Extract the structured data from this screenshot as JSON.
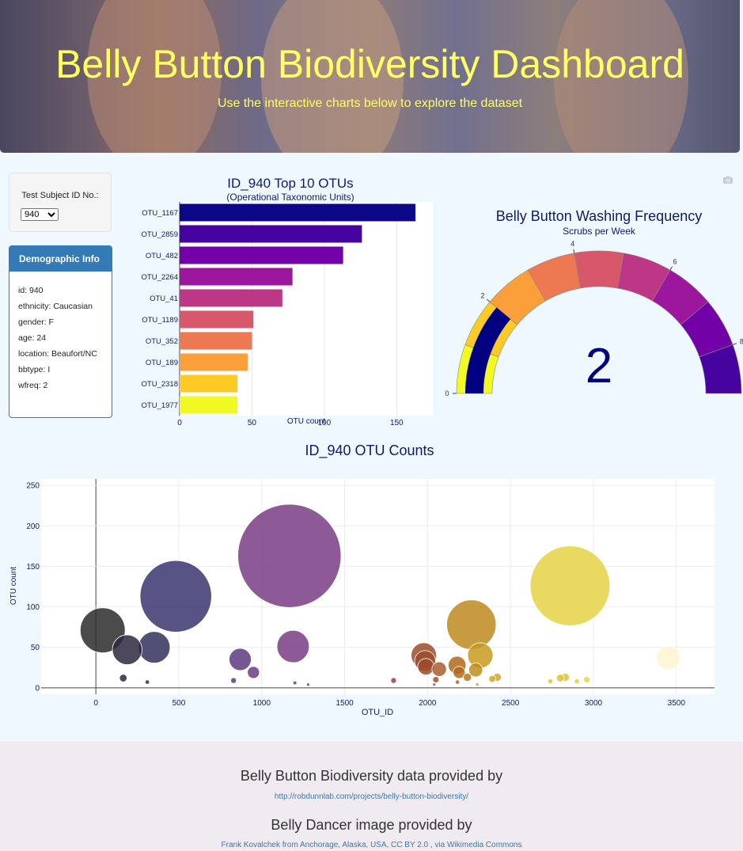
{
  "header": {
    "title": "Belly Button Biodiversity Dashboard",
    "subtitle": "Use the interactive charts below to explore the dataset"
  },
  "selector": {
    "label": "Test Subject ID No.:",
    "value": "940",
    "options": [
      "940"
    ]
  },
  "demographics": {
    "title": "Demographic Info",
    "lines": [
      "id: 940",
      "ethnicity: Caucasian",
      "gender: F",
      "age: 24",
      "location: Beaufort/NC",
      "bbtype: I",
      "wfreq: 2"
    ]
  },
  "icons": {
    "camera": "camera-icon"
  },
  "chart_data": [
    {
      "type": "bar",
      "orientation": "horizontal",
      "title": "ID_940 Top 10 OTUs",
      "subtitle": "(Operational Taxonomic Units)",
      "xlabel": "OTU count",
      "categories": [
        "OTU_1167",
        "OTU_2859",
        "OTU_482",
        "OTU_2264",
        "OTU_41",
        "OTU_1189",
        "OTU_352",
        "OTU_189",
        "OTU_2318",
        "OTU_1977"
      ],
      "values": [
        163,
        126,
        113,
        78,
        71,
        51,
        50,
        47,
        40,
        40
      ],
      "colors": [
        "#0d0887",
        "#46039f",
        "#7201a8",
        "#9c179e",
        "#bd3786",
        "#d8576b",
        "#ed7953",
        "#fb9f3a",
        "#fdca26",
        "#f0f921"
      ],
      "xlim": [
        0,
        175
      ],
      "xticks": [
        0,
        50,
        100,
        150
      ]
    },
    {
      "type": "gauge",
      "title": "Belly Button Washing Frequency",
      "subtitle": "Scrubs per Week",
      "value": 2,
      "range": [
        0,
        9
      ],
      "tick_values": [
        0,
        2,
        4,
        6,
        8
      ],
      "steps": [
        "#f0f921",
        "#fdca26",
        "#fb9f3a",
        "#ed7953",
        "#d8576b",
        "#bd3786",
        "#9c179e",
        "#7201a8",
        "#46039f"
      ],
      "bar_color": "#000080"
    },
    {
      "type": "scatter",
      "style": "bubble",
      "title": "ID_940 OTU Counts",
      "xlabel": "OTU_ID",
      "ylabel": "OTU count",
      "xlim": [
        -330,
        3730
      ],
      "ylim": [
        -8,
        258
      ],
      "xticks": [
        0,
        500,
        1000,
        1500,
        2000,
        2500,
        3000,
        3500
      ],
      "yticks": [
        0,
        50,
        100,
        150,
        200,
        250
      ],
      "grid": true,
      "points": [
        {
          "x": 41,
          "y": 71,
          "c": "#2b2b2b"
        },
        {
          "x": 189,
          "y": 47,
          "c": "#2e2840"
        },
        {
          "x": 352,
          "y": 50,
          "c": "#32305a"
        },
        {
          "x": 482,
          "y": 113,
          "c": "#3b3570"
        },
        {
          "x": 165,
          "y": 12,
          "c": "#2e2840"
        },
        {
          "x": 310,
          "y": 7,
          "c": "#32305a"
        },
        {
          "x": 870,
          "y": 35,
          "c": "#5e3a7e"
        },
        {
          "x": 950,
          "y": 19,
          "c": "#683d80"
        },
        {
          "x": 830,
          "y": 9,
          "c": "#5e3a7e"
        },
        {
          "x": 1167,
          "y": 163,
          "c": "#7a3c85"
        },
        {
          "x": 1189,
          "y": 51,
          "c": "#7a3c85"
        },
        {
          "x": 1200,
          "y": 6,
          "c": "#7a3c85"
        },
        {
          "x": 1280,
          "y": 4,
          "c": "#803c80"
        },
        {
          "x": 1795,
          "y": 9,
          "c": "#a04050"
        },
        {
          "x": 1977,
          "y": 40,
          "c": "#9c4c2a"
        },
        {
          "x": 1985,
          "y": 33,
          "c": "#9c4c2a"
        },
        {
          "x": 1990,
          "y": 26,
          "c": "#9c4c2a"
        },
        {
          "x": 2050,
          "y": 10,
          "c": "#a8502a"
        },
        {
          "x": 2070,
          "y": 23,
          "c": "#a8602a"
        },
        {
          "x": 2040,
          "y": 4,
          "c": "#a8502a"
        },
        {
          "x": 2178,
          "y": 28,
          "c": "#b06a1a"
        },
        {
          "x": 2190,
          "y": 19,
          "c": "#b06a1a"
        },
        {
          "x": 2180,
          "y": 7,
          "c": "#b06a1a"
        },
        {
          "x": 2240,
          "y": 13,
          "c": "#b87a18"
        },
        {
          "x": 2264,
          "y": 78,
          "c": "#bf8a20"
        },
        {
          "x": 2290,
          "y": 22,
          "c": "#c08c20"
        },
        {
          "x": 2318,
          "y": 40,
          "c": "#c89a20"
        },
        {
          "x": 2300,
          "y": 4,
          "c": "#c89a20"
        },
        {
          "x": 2390,
          "y": 11,
          "c": "#d0a828"
        },
        {
          "x": 2420,
          "y": 13,
          "c": "#d0a828"
        },
        {
          "x": 2859,
          "y": 126,
          "c": "#e6d245"
        },
        {
          "x": 2740,
          "y": 8,
          "c": "#ddc430"
        },
        {
          "x": 2800,
          "y": 12,
          "c": "#ddc430"
        },
        {
          "x": 2830,
          "y": 13,
          "c": "#ddc430"
        },
        {
          "x": 2900,
          "y": 8,
          "c": "#e2cc38"
        },
        {
          "x": 2960,
          "y": 10,
          "c": "#e6d245"
        },
        {
          "x": 3450,
          "y": 37,
          "c": "#fff3d0"
        }
      ]
    }
  ],
  "footer": {
    "data_credit": "Belly Button Biodiversity data provided by",
    "data_link": "http://robdunnlab.com/projects/belly-button-biodiversity/",
    "image_credit": "Belly Dancer image provided by",
    "image_link": "Frank Kovalchek from Anchorage, Alaska, USA, CC BY 2.0 , via Wikimedia Commons"
  }
}
